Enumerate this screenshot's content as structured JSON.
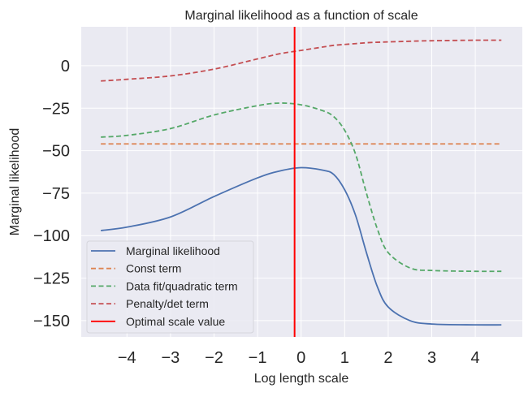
{
  "chart_data": {
    "type": "line",
    "title": "Marginal likelihood as a function of scale",
    "xlabel": "Log length scale",
    "ylabel": "Marginal likelihood",
    "xlim": [
      -5.05,
      5.08
    ],
    "ylim": [
      -159.6,
      22.9
    ],
    "xticks": [
      -4,
      -3,
      -2,
      -1,
      0,
      1,
      2,
      3,
      4
    ],
    "xtick_labels": [
      "−4",
      "−3",
      "−2",
      "−1",
      "0",
      "1",
      "2",
      "3",
      "4"
    ],
    "yticks": [
      0,
      -25,
      -50,
      -75,
      -100,
      -125,
      -150
    ],
    "ytick_labels": [
      "0",
      "−25",
      "−50",
      "−75",
      "−100",
      "−125",
      "−150"
    ],
    "grid": true,
    "legend_position": "lower-left",
    "background": "#eaeaf2",
    "x": [
      -4.6,
      -4,
      -3,
      -2,
      -1,
      -0.5,
      0,
      0.5,
      0.75,
      1,
      1.25,
      1.5,
      1.75,
      2,
      2.5,
      3,
      4,
      4.6
    ],
    "series": [
      {
        "name": "Marginal likelihood",
        "color": "#4c72b0",
        "style": "solid",
        "values": [
          -97,
          -95,
          -89,
          -77,
          -66,
          -62,
          -60,
          -61.5,
          -64,
          -73,
          -88,
          -110,
          -130,
          -142,
          -150,
          -152,
          -152.5,
          -152.5
        ]
      },
      {
        "name": "Const term",
        "color": "#dd8452",
        "style": "dashed",
        "values": [
          -46,
          -46,
          -46,
          -46,
          -46,
          -46,
          -46,
          -46,
          -46,
          -46,
          -46,
          -46,
          -46,
          -46,
          -46,
          -46,
          -46,
          -46
        ]
      },
      {
        "name": "Data fit/quadratic term",
        "color": "#55a868",
        "style": "dashed",
        "values": [
          -42,
          -41,
          -37,
          -29,
          -23.5,
          -22,
          -23,
          -26.5,
          -30,
          -38,
          -52,
          -75,
          -96,
          -110,
          -119,
          -120.5,
          -121,
          -121
        ]
      },
      {
        "name": "Penalty/det term",
        "color": "#c44e52",
        "style": "dashed",
        "values": [
          -9,
          -8,
          -6,
          -2,
          4,
          7,
          9,
          11,
          12,
          12.5,
          13,
          13.5,
          13.8,
          14,
          14.4,
          14.7,
          15,
          15
        ]
      }
    ],
    "vline": {
      "name": "Optimal scale value",
      "color": "#ff0000",
      "x": -0.15
    }
  }
}
